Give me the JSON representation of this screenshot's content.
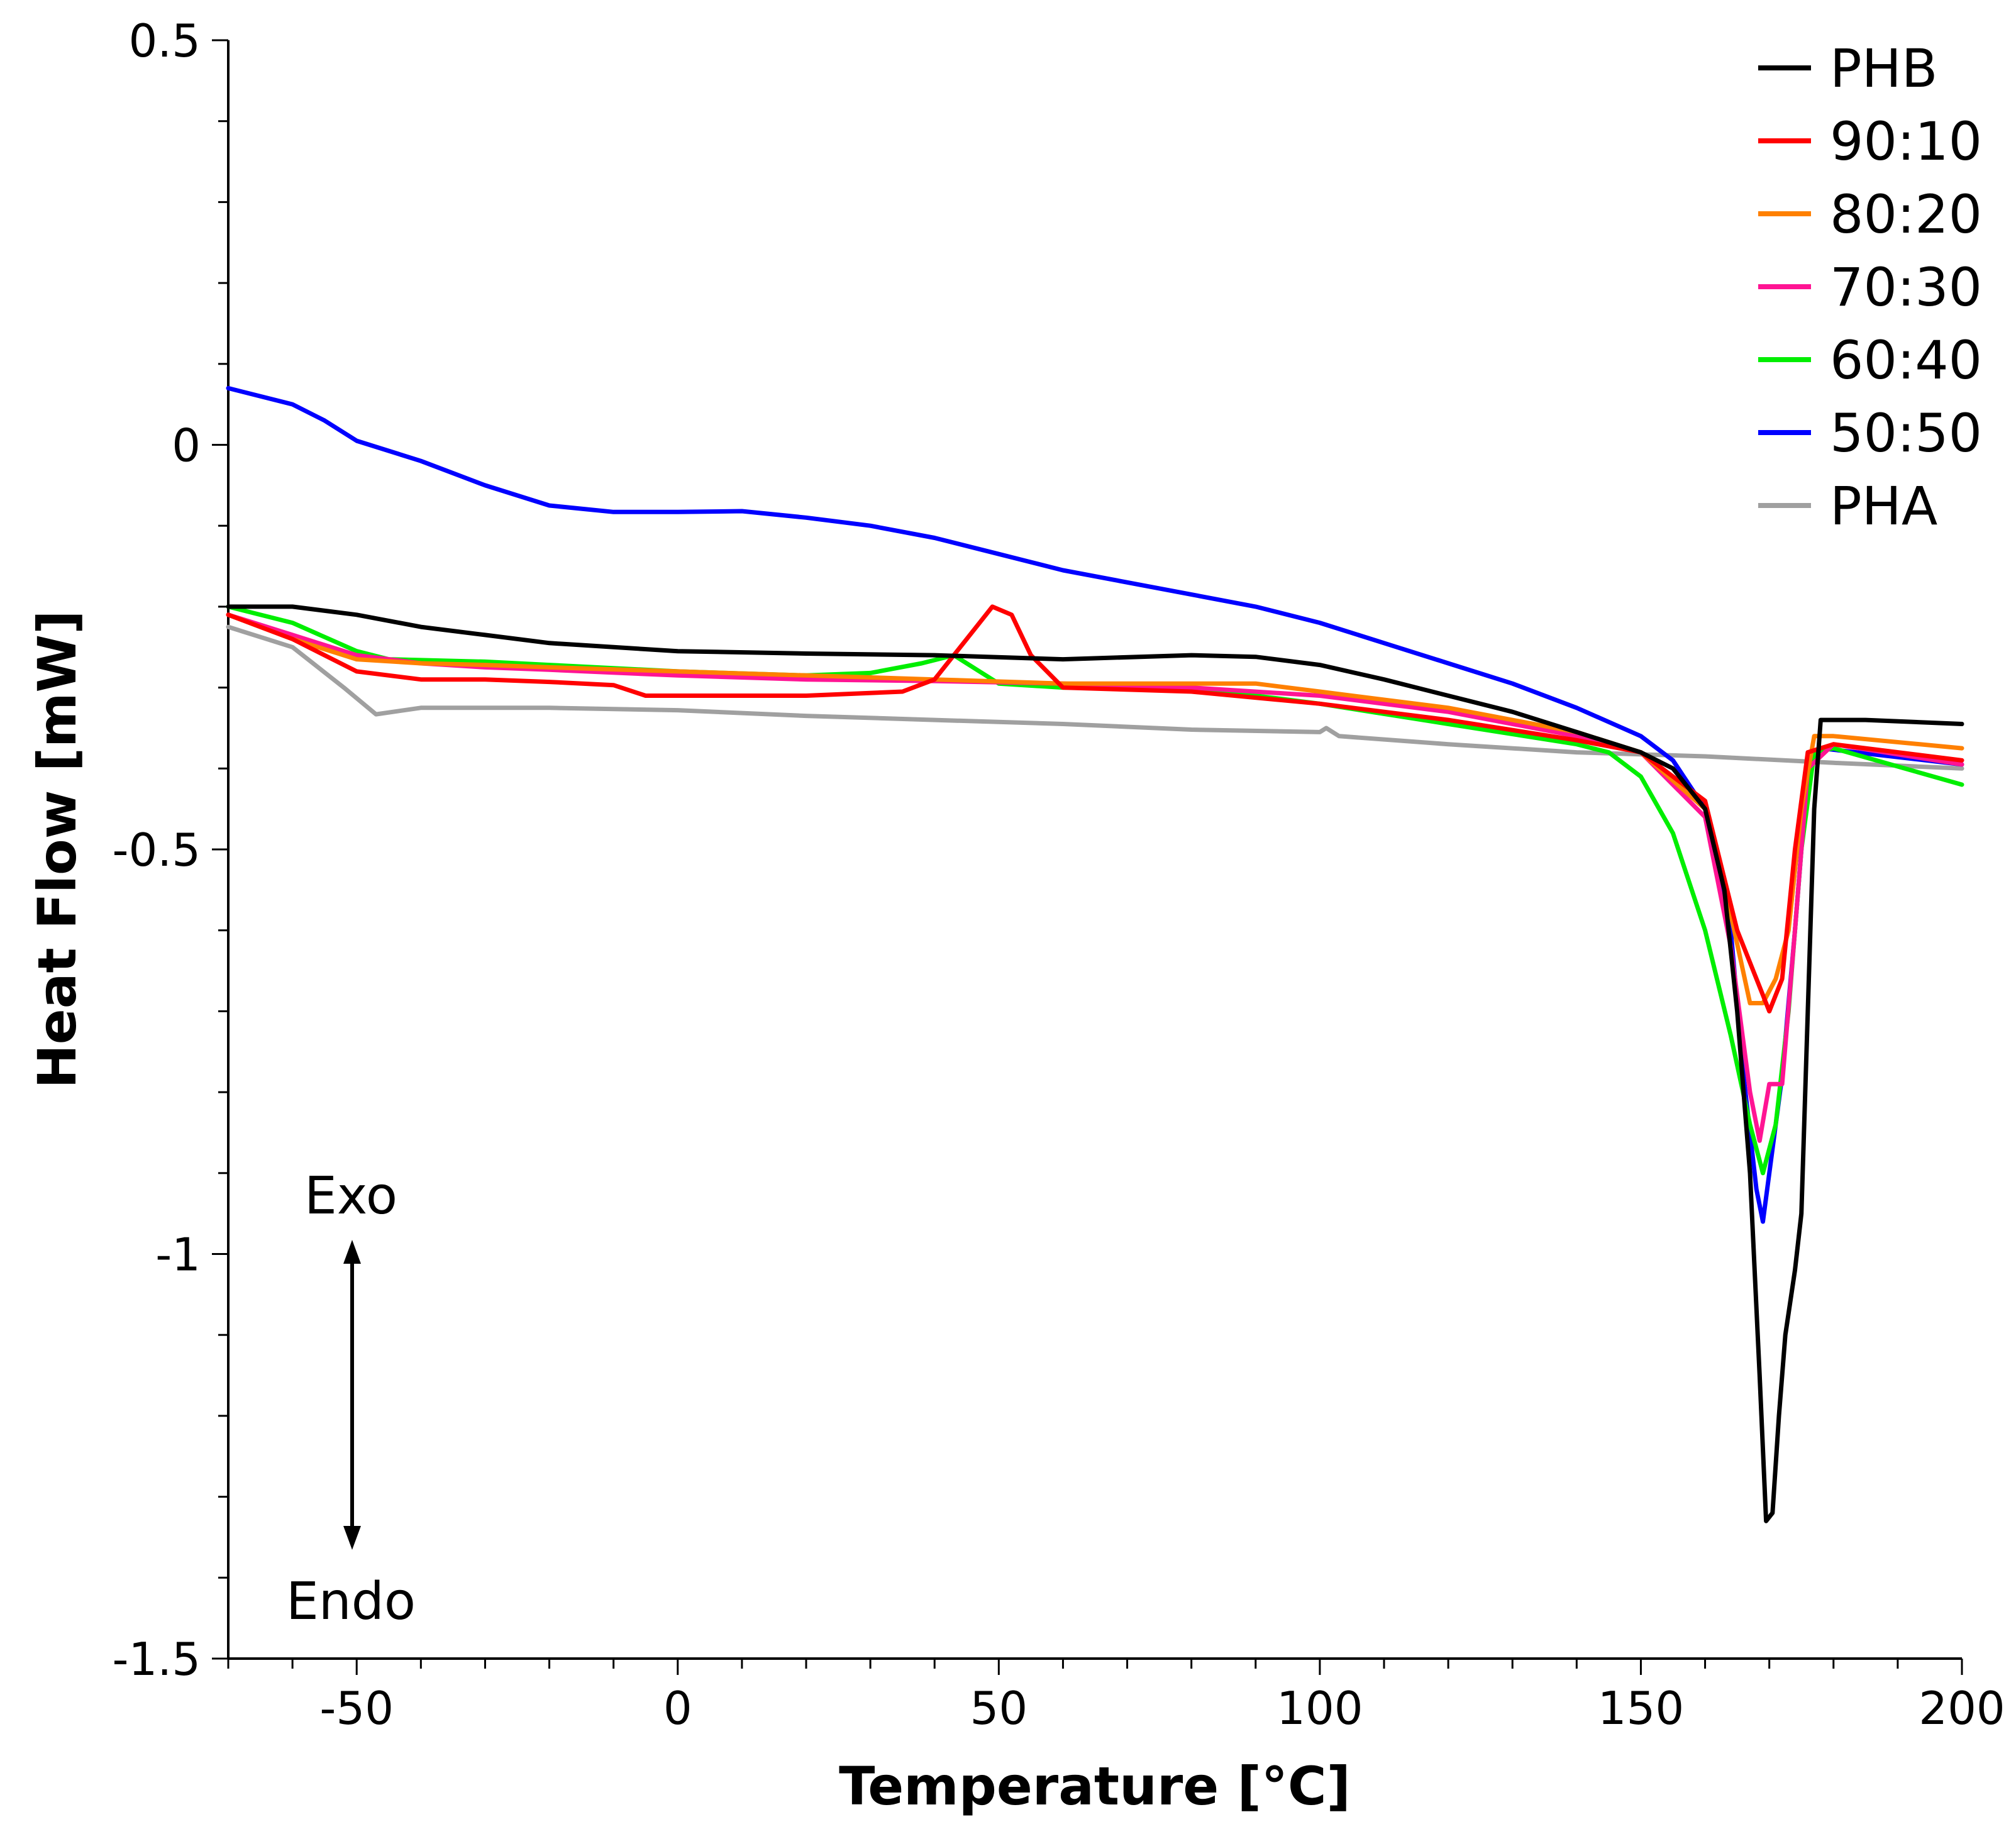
{
  "chart_data": {
    "type": "line",
    "title": "",
    "xlabel": "Temperature [°C]",
    "ylabel": "Heat Flow [mW]",
    "xlim": [
      -70,
      200
    ],
    "ylim": [
      -1.5,
      0.5
    ],
    "x_ticks": [
      -50,
      0,
      50,
      100,
      150,
      200
    ],
    "x_tick_labels": [
      "-50",
      "0",
      "50",
      "100",
      "150",
      "200"
    ],
    "y_ticks": [
      0.5,
      0,
      -0.5,
      -1,
      -1.5
    ],
    "y_tick_labels": [
      "0.5",
      "0",
      "-0.5",
      "-1",
      "-1.5"
    ],
    "grid": false,
    "legend_position": "top-right",
    "annotations": {
      "exo": "Exo",
      "endo": "Endo"
    },
    "series": [
      {
        "name": "PHB",
        "color": "#000000",
        "points": [
          [
            -70,
            -0.2
          ],
          [
            -60,
            -0.2
          ],
          [
            -50,
            -0.21
          ],
          [
            -40,
            -0.225
          ],
          [
            -30,
            -0.235
          ],
          [
            -20,
            -0.245
          ],
          [
            -10,
            -0.25
          ],
          [
            0,
            -0.255
          ],
          [
            20,
            -0.258
          ],
          [
            40,
            -0.26
          ],
          [
            60,
            -0.265
          ],
          [
            80,
            -0.26
          ],
          [
            90,
            -0.262
          ],
          [
            100,
            -0.272
          ],
          [
            110,
            -0.29
          ],
          [
            120,
            -0.31
          ],
          [
            130,
            -0.33
          ],
          [
            140,
            -0.355
          ],
          [
            150,
            -0.38
          ],
          [
            155,
            -0.4
          ],
          [
            160,
            -0.45
          ],
          [
            163,
            -0.55
          ],
          [
            165,
            -0.7
          ],
          [
            167,
            -0.9
          ],
          [
            168.5,
            -1.15
          ],
          [
            169.5,
            -1.33
          ],
          [
            170.5,
            -1.32
          ],
          [
            171.5,
            -1.2
          ],
          [
            172.5,
            -1.1
          ],
          [
            174,
            -1.02
          ],
          [
            175,
            -0.95
          ],
          [
            176,
            -0.7
          ],
          [
            177,
            -0.45
          ],
          [
            178,
            -0.34
          ],
          [
            185,
            -0.34
          ],
          [
            200,
            -0.345
          ]
        ]
      },
      {
        "name": "90:10",
        "color": "#ff0000",
        "points": [
          [
            -70,
            -0.21
          ],
          [
            -60,
            -0.24
          ],
          [
            -50,
            -0.28
          ],
          [
            -40,
            -0.29
          ],
          [
            -30,
            -0.29
          ],
          [
            -20,
            -0.293
          ],
          [
            -10,
            -0.297
          ],
          [
            -5,
            -0.31
          ],
          [
            0,
            -0.31
          ],
          [
            20,
            -0.31
          ],
          [
            35,
            -0.305
          ],
          [
            40,
            -0.29
          ],
          [
            45,
            -0.24
          ],
          [
            49,
            -0.2
          ],
          [
            52,
            -0.21
          ],
          [
            55,
            -0.26
          ],
          [
            60,
            -0.3
          ],
          [
            80,
            -0.305
          ],
          [
            100,
            -0.32
          ],
          [
            120,
            -0.34
          ],
          [
            140,
            -0.365
          ],
          [
            150,
            -0.38
          ],
          [
            160,
            -0.44
          ],
          [
            165,
            -0.6
          ],
          [
            170,
            -0.7
          ],
          [
            172,
            -0.66
          ],
          [
            174,
            -0.5
          ],
          [
            176,
            -0.38
          ],
          [
            180,
            -0.37
          ],
          [
            200,
            -0.39
          ]
        ]
      },
      {
        "name": "80:20",
        "color": "#ff8000",
        "points": [
          [
            -70,
            -0.21
          ],
          [
            -60,
            -0.24
          ],
          [
            -50,
            -0.265
          ],
          [
            -40,
            -0.27
          ],
          [
            -30,
            -0.272
          ],
          [
            -20,
            -0.275
          ],
          [
            0,
            -0.28
          ],
          [
            20,
            -0.285
          ],
          [
            40,
            -0.29
          ],
          [
            60,
            -0.295
          ],
          [
            80,
            -0.295
          ],
          [
            90,
            -0.295
          ],
          [
            100,
            -0.305
          ],
          [
            120,
            -0.325
          ],
          [
            140,
            -0.355
          ],
          [
            150,
            -0.38
          ],
          [
            160,
            -0.45
          ],
          [
            164,
            -0.58
          ],
          [
            167,
            -0.69
          ],
          [
            169,
            -0.69
          ],
          [
            171,
            -0.66
          ],
          [
            173,
            -0.6
          ],
          [
            175,
            -0.45
          ],
          [
            177,
            -0.36
          ],
          [
            180,
            -0.36
          ],
          [
            200,
            -0.375
          ]
        ]
      },
      {
        "name": "70:30",
        "color": "#ff1493",
        "points": [
          [
            -70,
            -0.21
          ],
          [
            -60,
            -0.235
          ],
          [
            -50,
            -0.26
          ],
          [
            -40,
            -0.27
          ],
          [
            -30,
            -0.275
          ],
          [
            -20,
            -0.278
          ],
          [
            0,
            -0.285
          ],
          [
            20,
            -0.29
          ],
          [
            40,
            -0.292
          ],
          [
            60,
            -0.295
          ],
          [
            80,
            -0.3
          ],
          [
            100,
            -0.31
          ],
          [
            120,
            -0.33
          ],
          [
            140,
            -0.36
          ],
          [
            150,
            -0.38
          ],
          [
            160,
            -0.46
          ],
          [
            164,
            -0.62
          ],
          [
            167,
            -0.8
          ],
          [
            168.5,
            -0.86
          ],
          [
            170,
            -0.79
          ],
          [
            172,
            -0.79
          ],
          [
            174,
            -0.6
          ],
          [
            176,
            -0.4
          ],
          [
            180,
            -0.37
          ],
          [
            200,
            -0.395
          ]
        ]
      },
      {
        "name": "60:40",
        "color": "#00ee00",
        "points": [
          [
            -70,
            -0.2
          ],
          [
            -60,
            -0.22
          ],
          [
            -50,
            -0.255
          ],
          [
            -45,
            -0.265
          ],
          [
            -30,
            -0.268
          ],
          [
            -20,
            -0.272
          ],
          [
            0,
            -0.28
          ],
          [
            20,
            -0.285
          ],
          [
            30,
            -0.282
          ],
          [
            38,
            -0.27
          ],
          [
            43,
            -0.26
          ],
          [
            47,
            -0.28
          ],
          [
            50,
            -0.295
          ],
          [
            60,
            -0.3
          ],
          [
            80,
            -0.3
          ],
          [
            100,
            -0.32
          ],
          [
            120,
            -0.345
          ],
          [
            140,
            -0.37
          ],
          [
            145,
            -0.38
          ],
          [
            150,
            -0.41
          ],
          [
            155,
            -0.48
          ],
          [
            160,
            -0.6
          ],
          [
            164,
            -0.73
          ],
          [
            167,
            -0.84
          ],
          [
            169,
            -0.9
          ],
          [
            171,
            -0.84
          ],
          [
            173,
            -0.7
          ],
          [
            175,
            -0.5
          ],
          [
            177,
            -0.38
          ],
          [
            180,
            -0.375
          ],
          [
            200,
            -0.42
          ]
        ]
      },
      {
        "name": "50:50",
        "color": "#0000ff",
        "points": [
          [
            -70,
            0.07
          ],
          [
            -60,
            0.05
          ],
          [
            -55,
            0.03
          ],
          [
            -50,
            0.005
          ],
          [
            -40,
            -0.02
          ],
          [
            -30,
            -0.05
          ],
          [
            -20,
            -0.075
          ],
          [
            -10,
            -0.083
          ],
          [
            0,
            -0.083
          ],
          [
            10,
            -0.082
          ],
          [
            20,
            -0.09
          ],
          [
            30,
            -0.1
          ],
          [
            40,
            -0.115
          ],
          [
            50,
            -0.135
          ],
          [
            60,
            -0.155
          ],
          [
            70,
            -0.17
          ],
          [
            80,
            -0.185
          ],
          [
            90,
            -0.2
          ],
          [
            100,
            -0.22
          ],
          [
            110,
            -0.245
          ],
          [
            120,
            -0.27
          ],
          [
            130,
            -0.295
          ],
          [
            140,
            -0.325
          ],
          [
            150,
            -0.36
          ],
          [
            155,
            -0.39
          ],
          [
            160,
            -0.45
          ],
          [
            164,
            -0.6
          ],
          [
            166,
            -0.78
          ],
          [
            168,
            -0.92
          ],
          [
            169,
            -0.96
          ],
          [
            170,
            -0.9
          ],
          [
            172,
            -0.78
          ],
          [
            174,
            -0.6
          ],
          [
            176,
            -0.4
          ],
          [
            178,
            -0.375
          ],
          [
            200,
            -0.395
          ]
        ]
      },
      {
        "name": "PHA",
        "color": "#a0a0a0",
        "points": [
          [
            -70,
            -0.225
          ],
          [
            -60,
            -0.25
          ],
          [
            -52,
            -0.3
          ],
          [
            -47,
            -0.333
          ],
          [
            -40,
            -0.325
          ],
          [
            -20,
            -0.325
          ],
          [
            0,
            -0.328
          ],
          [
            20,
            -0.335
          ],
          [
            40,
            -0.34
          ],
          [
            60,
            -0.345
          ],
          [
            80,
            -0.352
          ],
          [
            100,
            -0.355
          ],
          [
            101,
            -0.35
          ],
          [
            103,
            -0.36
          ],
          [
            120,
            -0.37
          ],
          [
            140,
            -0.38
          ],
          [
            160,
            -0.385
          ],
          [
            180,
            -0.393
          ],
          [
            200,
            -0.4
          ]
        ]
      }
    ]
  }
}
